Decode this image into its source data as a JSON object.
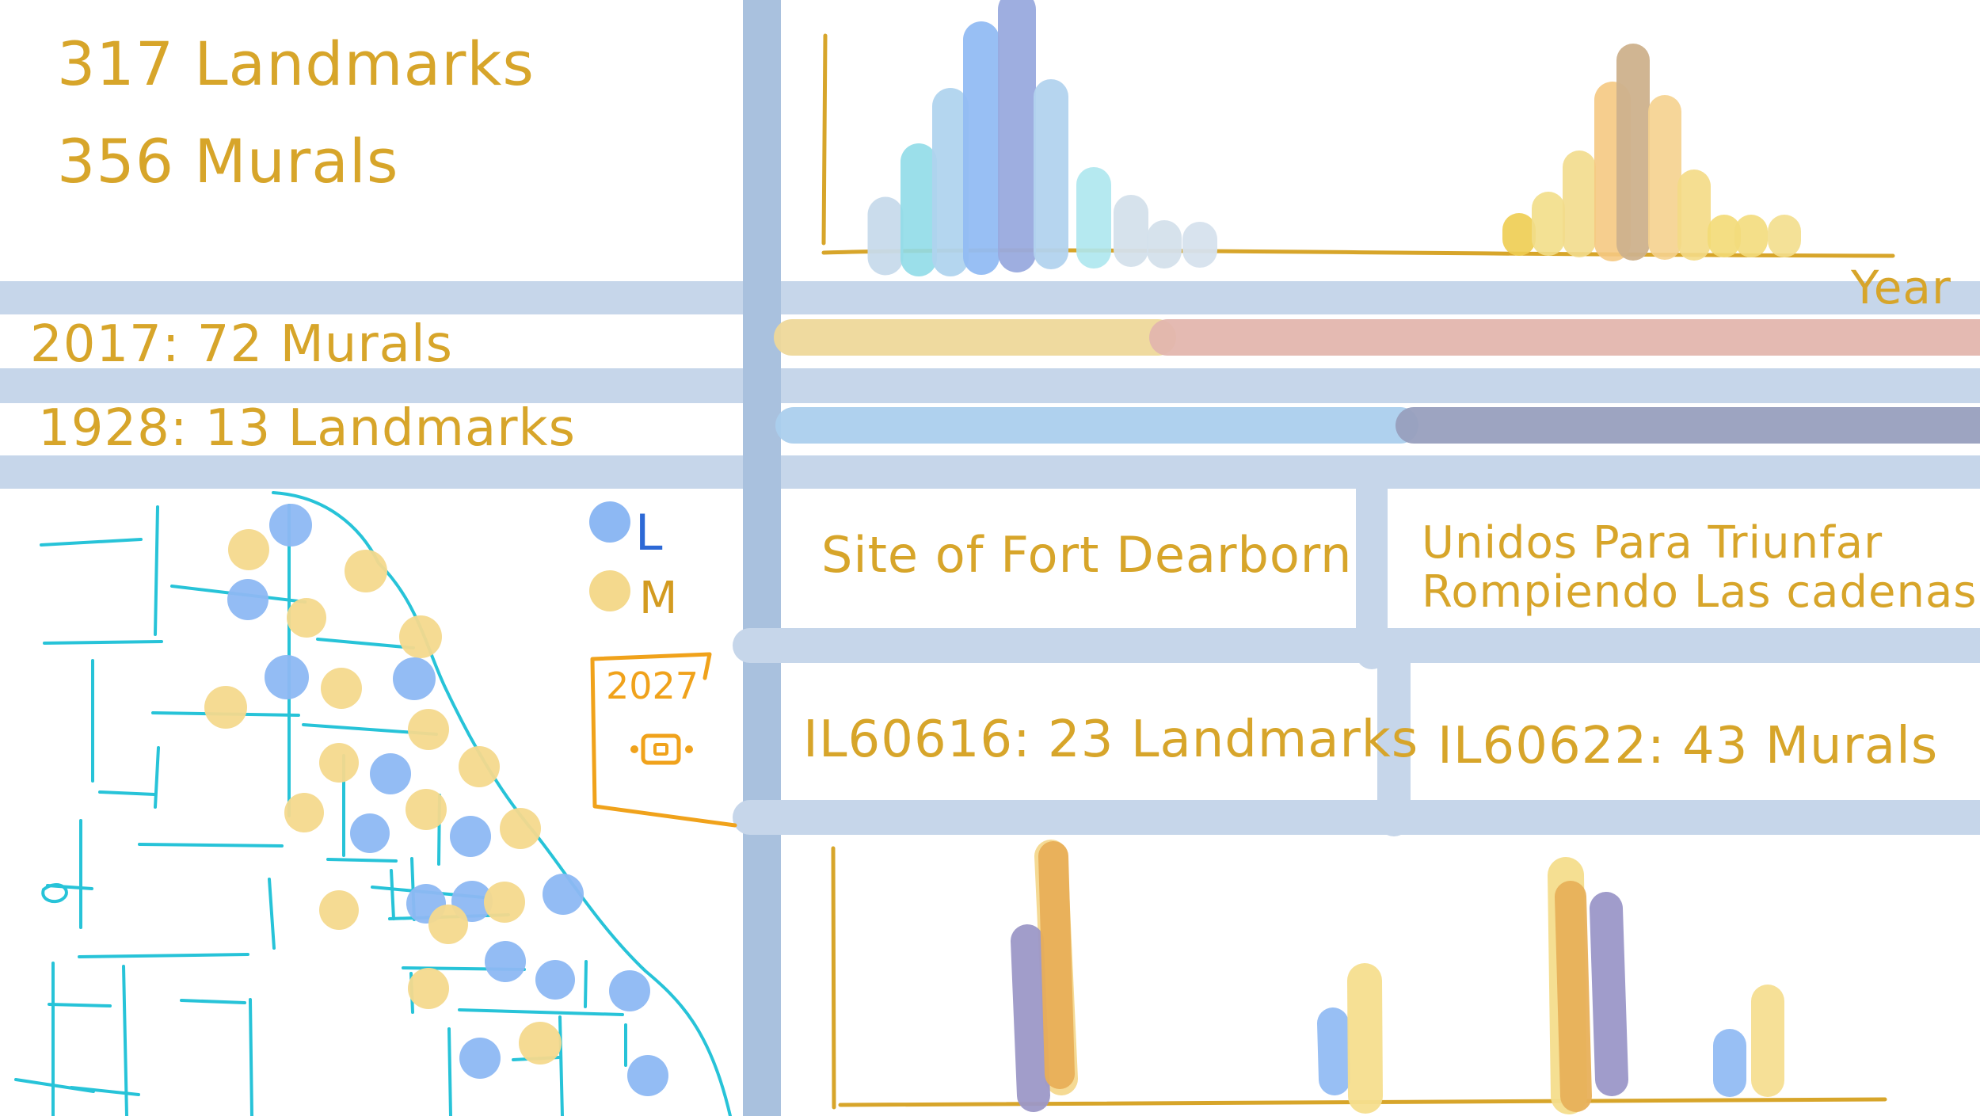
{
  "summary": {
    "landmarks": "317 Landmarks",
    "murals": "356 Murals"
  },
  "highlights": {
    "mural_year": "2017: 72 Murals",
    "landmark_year": "1928: 13 Landmarks"
  },
  "legend": {
    "landmarks_key": "L",
    "murals_key": "M",
    "year_value": "2027"
  },
  "details": {
    "landmark_name": "Site of Fort Dearborn",
    "mural_name_1": "Unidos Para Triunfar",
    "mural_name_2": "Rompiendo Las cadenas",
    "landmark_code": "IL60616: 23 Landmarks",
    "mural_code": "IL60622: 43 Murals"
  },
  "top_chart": {
    "x_label": "Year"
  },
  "colors": {
    "landmarks_blue": "#8db8f3",
    "murals_yellow": "#f4d78a",
    "grid_blue": "#c6d6ea",
    "accent_gold": "#d7a52a",
    "map_cyan": "#27c3d8"
  },
  "chart_data": [
    {
      "type": "bar",
      "name": "year-distribution",
      "xlabel": "Year",
      "series": [
        {
          "values": [
            3,
            7,
            10,
            13,
            16,
            10,
            5,
            3,
            2,
            1
          ]
        },
        {
          "values": [
            2,
            3,
            5,
            7,
            12,
            8,
            3,
            2,
            2
          ]
        }
      ]
    },
    {
      "type": "bar",
      "name": "zip-comparison",
      "series": [
        {
          "values": [
            11,
            6,
            10,
            4
          ]
        },
        {
          "values": [
            14,
            8,
            15,
            8
          ]
        }
      ]
    }
  ]
}
